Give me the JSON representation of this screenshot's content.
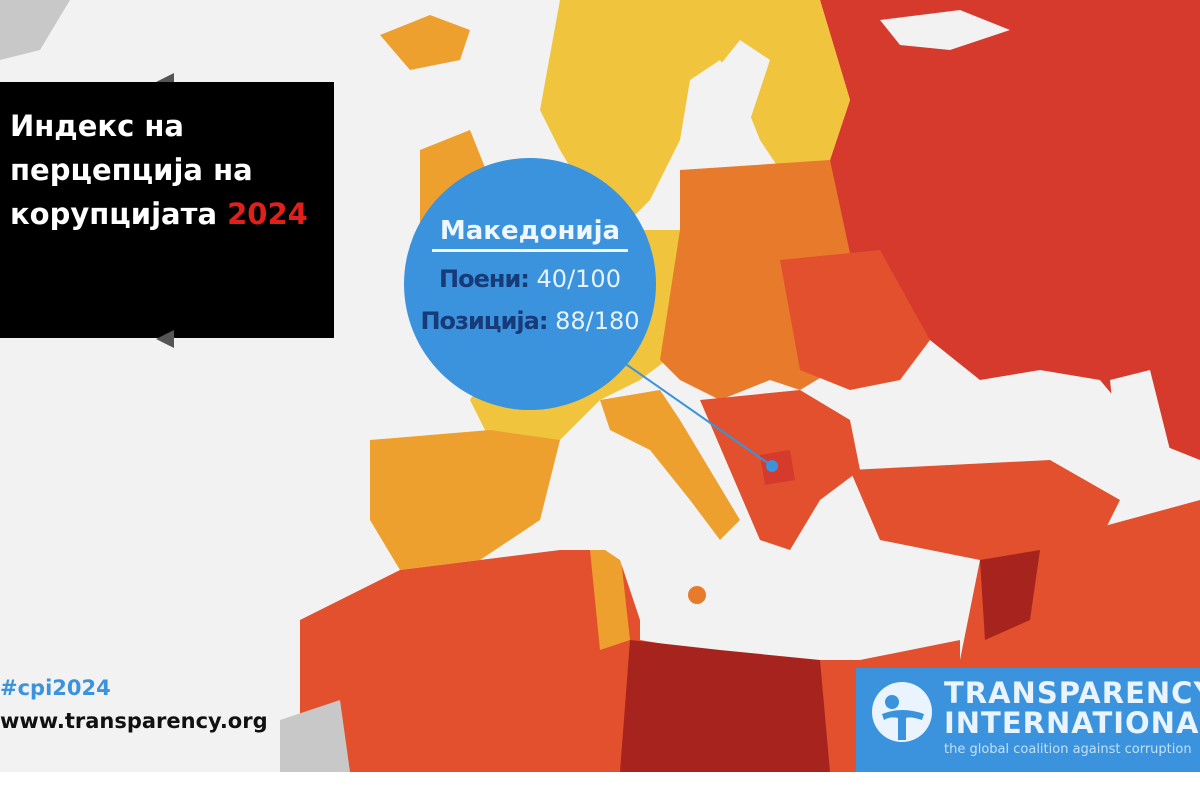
{
  "title": {
    "line1": "Индекс на",
    "line2": "перцепција на",
    "line3_text": "корупцијата",
    "year": "2024"
  },
  "callout": {
    "country": "Македонија",
    "score_label": "Поени:",
    "score_value": "40/100",
    "rank_label": "Позиција:",
    "rank_value": "88/180"
  },
  "hashtag": "#cpi2024",
  "website": "www.transparency.org",
  "logo": {
    "name_line1": "TRANSPARENCY",
    "name_line2": "INTERNATIONAL",
    "tagline": "the global coalition against corruption"
  },
  "colors": {
    "sea": "#f2f2f2",
    "highest_score": "#f0c43c",
    "high": "#eea02f",
    "mid": "#e87a2c",
    "low": "#e2502d",
    "lower": "#d53a2c",
    "lowest": "#a7231e",
    "callout": "#3a93dc",
    "year": "#e0201b"
  }
}
